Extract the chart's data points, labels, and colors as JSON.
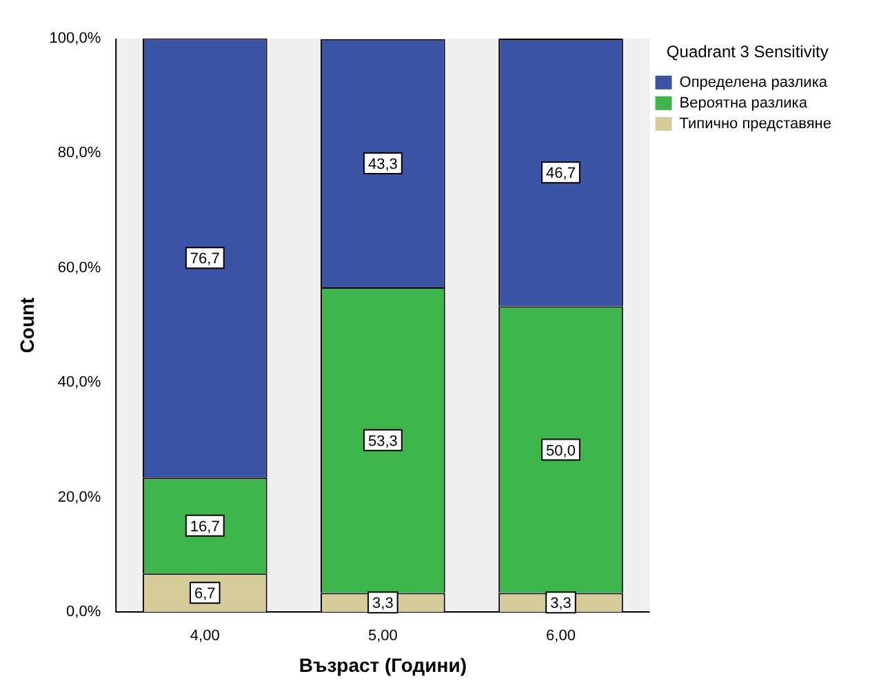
{
  "chart_data": {
    "type": "bar",
    "stacked": true,
    "xlabel": "Възраст (Години)",
    "ylabel": "Count",
    "legend_title": "Quadrant 3 Sensitivity",
    "legend": "right",
    "grid": false,
    "categories": [
      "4,00",
      "5,00",
      "6,00"
    ],
    "ylim": [
      0,
      100
    ],
    "yticks": [
      {
        "value": 0,
        "label": "0,0%"
      },
      {
        "value": 20,
        "label": "20,0%"
      },
      {
        "value": 40,
        "label": "40,0%"
      },
      {
        "value": 60,
        "label": "60,0%"
      },
      {
        "value": 80,
        "label": "80,0%"
      },
      {
        "value": 100,
        "label": "100,0%"
      }
    ],
    "series": [
      {
        "name": "Типично представяне",
        "color": "#d5cc9a",
        "values": [
          6.7,
          3.3,
          3.3
        ],
        "value_labels": [
          "6,7",
          "3,3",
          "3,3"
        ]
      },
      {
        "name": "Вероятна разлика",
        "color": "#3cb54a",
        "values": [
          16.7,
          53.3,
          50.0
        ],
        "value_labels": [
          "16,7",
          "53,3",
          "50,0"
        ]
      },
      {
        "name": "Определена разлика",
        "color": "#3b54a5",
        "values": [
          76.7,
          43.3,
          46.7
        ],
        "value_labels": [
          "76,7",
          "43,3",
          "46,7"
        ]
      }
    ]
  }
}
